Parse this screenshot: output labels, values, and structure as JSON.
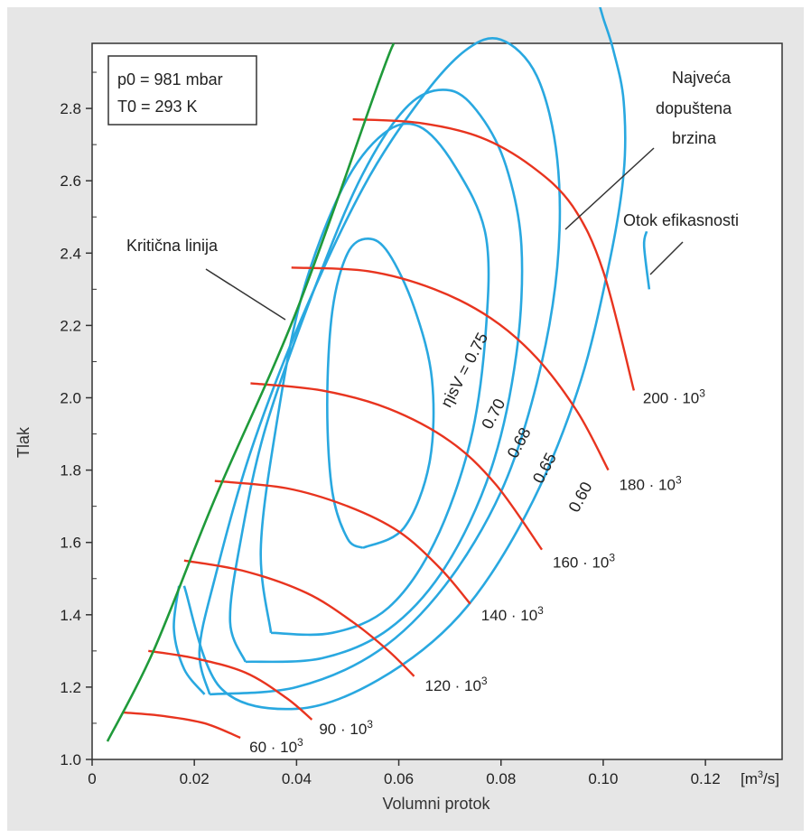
{
  "chart_data": {
    "type": "line",
    "xlabel": "Volumni protok",
    "ylabel": "Tlak",
    "x_unit": "[m3/s]",
    "xlim": [
      0,
      0.135
    ],
    "ylim": [
      1.0,
      2.98
    ],
    "x_ticks": [
      "0",
      "0.02",
      "0.04",
      "0.06",
      "0.08",
      "0.10",
      "0.12"
    ],
    "y_ticks": [
      "1.0",
      "1.2",
      "1.4",
      "1.6",
      "1.8",
      "2.0",
      "2.2",
      "2.4",
      "2.6",
      "2.8"
    ],
    "conditions": {
      "line1": "p0 = 981 mbar",
      "line2": "T0 = 293 K"
    },
    "annotations": {
      "critical_line": "Kritična linija",
      "max_speed_1": "Najveća",
      "max_speed_2": "dopuštena",
      "max_speed_3": "brzina",
      "efficiency_island": "Otok efikasnosti"
    },
    "critical_line": {
      "name": "Kritična linija",
      "color": "#1f9a3a",
      "x": [
        0.003,
        0.012,
        0.024,
        0.04,
        0.056,
        0.059
      ],
      "y": [
        1.05,
        1.3,
        1.72,
        2.24,
        2.87,
        2.98
      ]
    },
    "speed_lines": [
      {
        "label": "60 · 10³",
        "x": [
          0.006,
          0.014,
          0.022,
          0.029
        ],
        "y": [
          1.13,
          1.12,
          1.1,
          1.06
        ]
      },
      {
        "label": "90 · 10³",
        "x": [
          0.011,
          0.02,
          0.03,
          0.038,
          0.043
        ],
        "y": [
          1.3,
          1.28,
          1.24,
          1.17,
          1.11
        ]
      },
      {
        "label": "120 · 10³",
        "x": [
          0.018,
          0.03,
          0.042,
          0.051,
          0.058,
          0.063
        ],
        "y": [
          1.55,
          1.52,
          1.46,
          1.38,
          1.3,
          1.23
        ]
      },
      {
        "label": "140 · 10³",
        "x": [
          0.024,
          0.038,
          0.05,
          0.06,
          0.068,
          0.074
        ],
        "y": [
          1.77,
          1.75,
          1.7,
          1.63,
          1.53,
          1.43
        ]
      },
      {
        "label": "160 · 10³",
        "x": [
          0.031,
          0.045,
          0.058,
          0.07,
          0.079,
          0.088
        ],
        "y": [
          2.04,
          2.02,
          1.97,
          1.88,
          1.76,
          1.58
        ]
      },
      {
        "label": "180 · 10³",
        "x": [
          0.039,
          0.054,
          0.067,
          0.078,
          0.087,
          0.095,
          0.101
        ],
        "y": [
          2.36,
          2.35,
          2.3,
          2.22,
          2.11,
          1.96,
          1.8
        ]
      },
      {
        "label": "200 · 10³",
        "x": [
          0.051,
          0.064,
          0.076,
          0.086,
          0.094,
          0.1,
          0.106
        ],
        "y": [
          2.77,
          2.76,
          2.72,
          2.64,
          2.53,
          2.35,
          2.02
        ]
      }
    ],
    "efficiency_contours": [
      {
        "label": "ηisV = 0.75",
        "x": [
          0.053,
          0.061,
          0.066,
          0.0665,
          0.063,
          0.058,
          0.054,
          0.05,
          0.047,
          0.046,
          0.047,
          0.05,
          0.053
        ],
        "y": [
          1.585,
          1.64,
          1.82,
          2.05,
          2.25,
          2.4,
          2.44,
          2.4,
          2.24,
          1.98,
          1.74,
          1.61,
          1.585
        ]
      },
      {
        "label": "0.70",
        "x": [
          0.035,
          0.047,
          0.058,
          0.067,
          0.074,
          0.077,
          0.077,
          0.071,
          0.064,
          0.057,
          0.049,
          0.041,
          0.036,
          0.033,
          0.035
        ],
        "y": [
          1.35,
          1.35,
          1.42,
          1.6,
          1.88,
          2.18,
          2.45,
          2.64,
          2.75,
          2.73,
          2.58,
          2.28,
          1.92,
          1.58,
          1.35
        ]
      },
      {
        "label": "0.68",
        "x": [
          0.03,
          0.045,
          0.058,
          0.069,
          0.078,
          0.083,
          0.084,
          0.081,
          0.076,
          0.07,
          0.062,
          0.053,
          0.044,
          0.034,
          0.029,
          0.027,
          0.03
        ],
        "y": [
          1.27,
          1.28,
          1.36,
          1.53,
          1.8,
          2.12,
          2.42,
          2.64,
          2.78,
          2.85,
          2.81,
          2.62,
          2.32,
          1.92,
          1.6,
          1.38,
          1.27
        ]
      },
      {
        "label": "0.65",
        "x": [
          0.023,
          0.04,
          0.056,
          0.069,
          0.08,
          0.087,
          0.091,
          0.091,
          0.087,
          0.08,
          0.073,
          0.064,
          0.053,
          0.041,
          0.031,
          0.024,
          0.021,
          0.023
        ],
        "y": [
          1.18,
          1.2,
          1.3,
          1.48,
          1.74,
          2.04,
          2.36,
          2.66,
          2.89,
          2.99,
          2.96,
          2.82,
          2.58,
          2.22,
          1.85,
          1.5,
          1.3,
          1.18
        ]
      },
      {
        "label": "0.60",
        "x": [
          0.018,
          0.025,
          0.04,
          0.056,
          0.072,
          0.085,
          0.095,
          0.101,
          0.104,
          0.104,
          0.102,
          0.1,
          0.099
        ],
        "y": [
          1.48,
          1.2,
          1.14,
          1.22,
          1.4,
          1.68,
          2.02,
          2.36,
          2.62,
          2.82,
          2.96,
          3.05,
          3.1
        ]
      },
      {
        "x": [
          0.017,
          0.016,
          0.018,
          0.022
        ],
        "y": [
          1.48,
          1.36,
          1.25,
          1.18
        ]
      },
      {
        "x": [
          0.109,
          0.108,
          0.1085
        ],
        "y": [
          2.3,
          2.42,
          2.46
        ]
      }
    ],
    "colors": {
      "efficiency": "#29a8e0",
      "speed": "#e8341f",
      "critical": "#1f9a3a",
      "background": "#e6e6e6",
      "plot": "#ffffff"
    },
    "grid": false
  }
}
